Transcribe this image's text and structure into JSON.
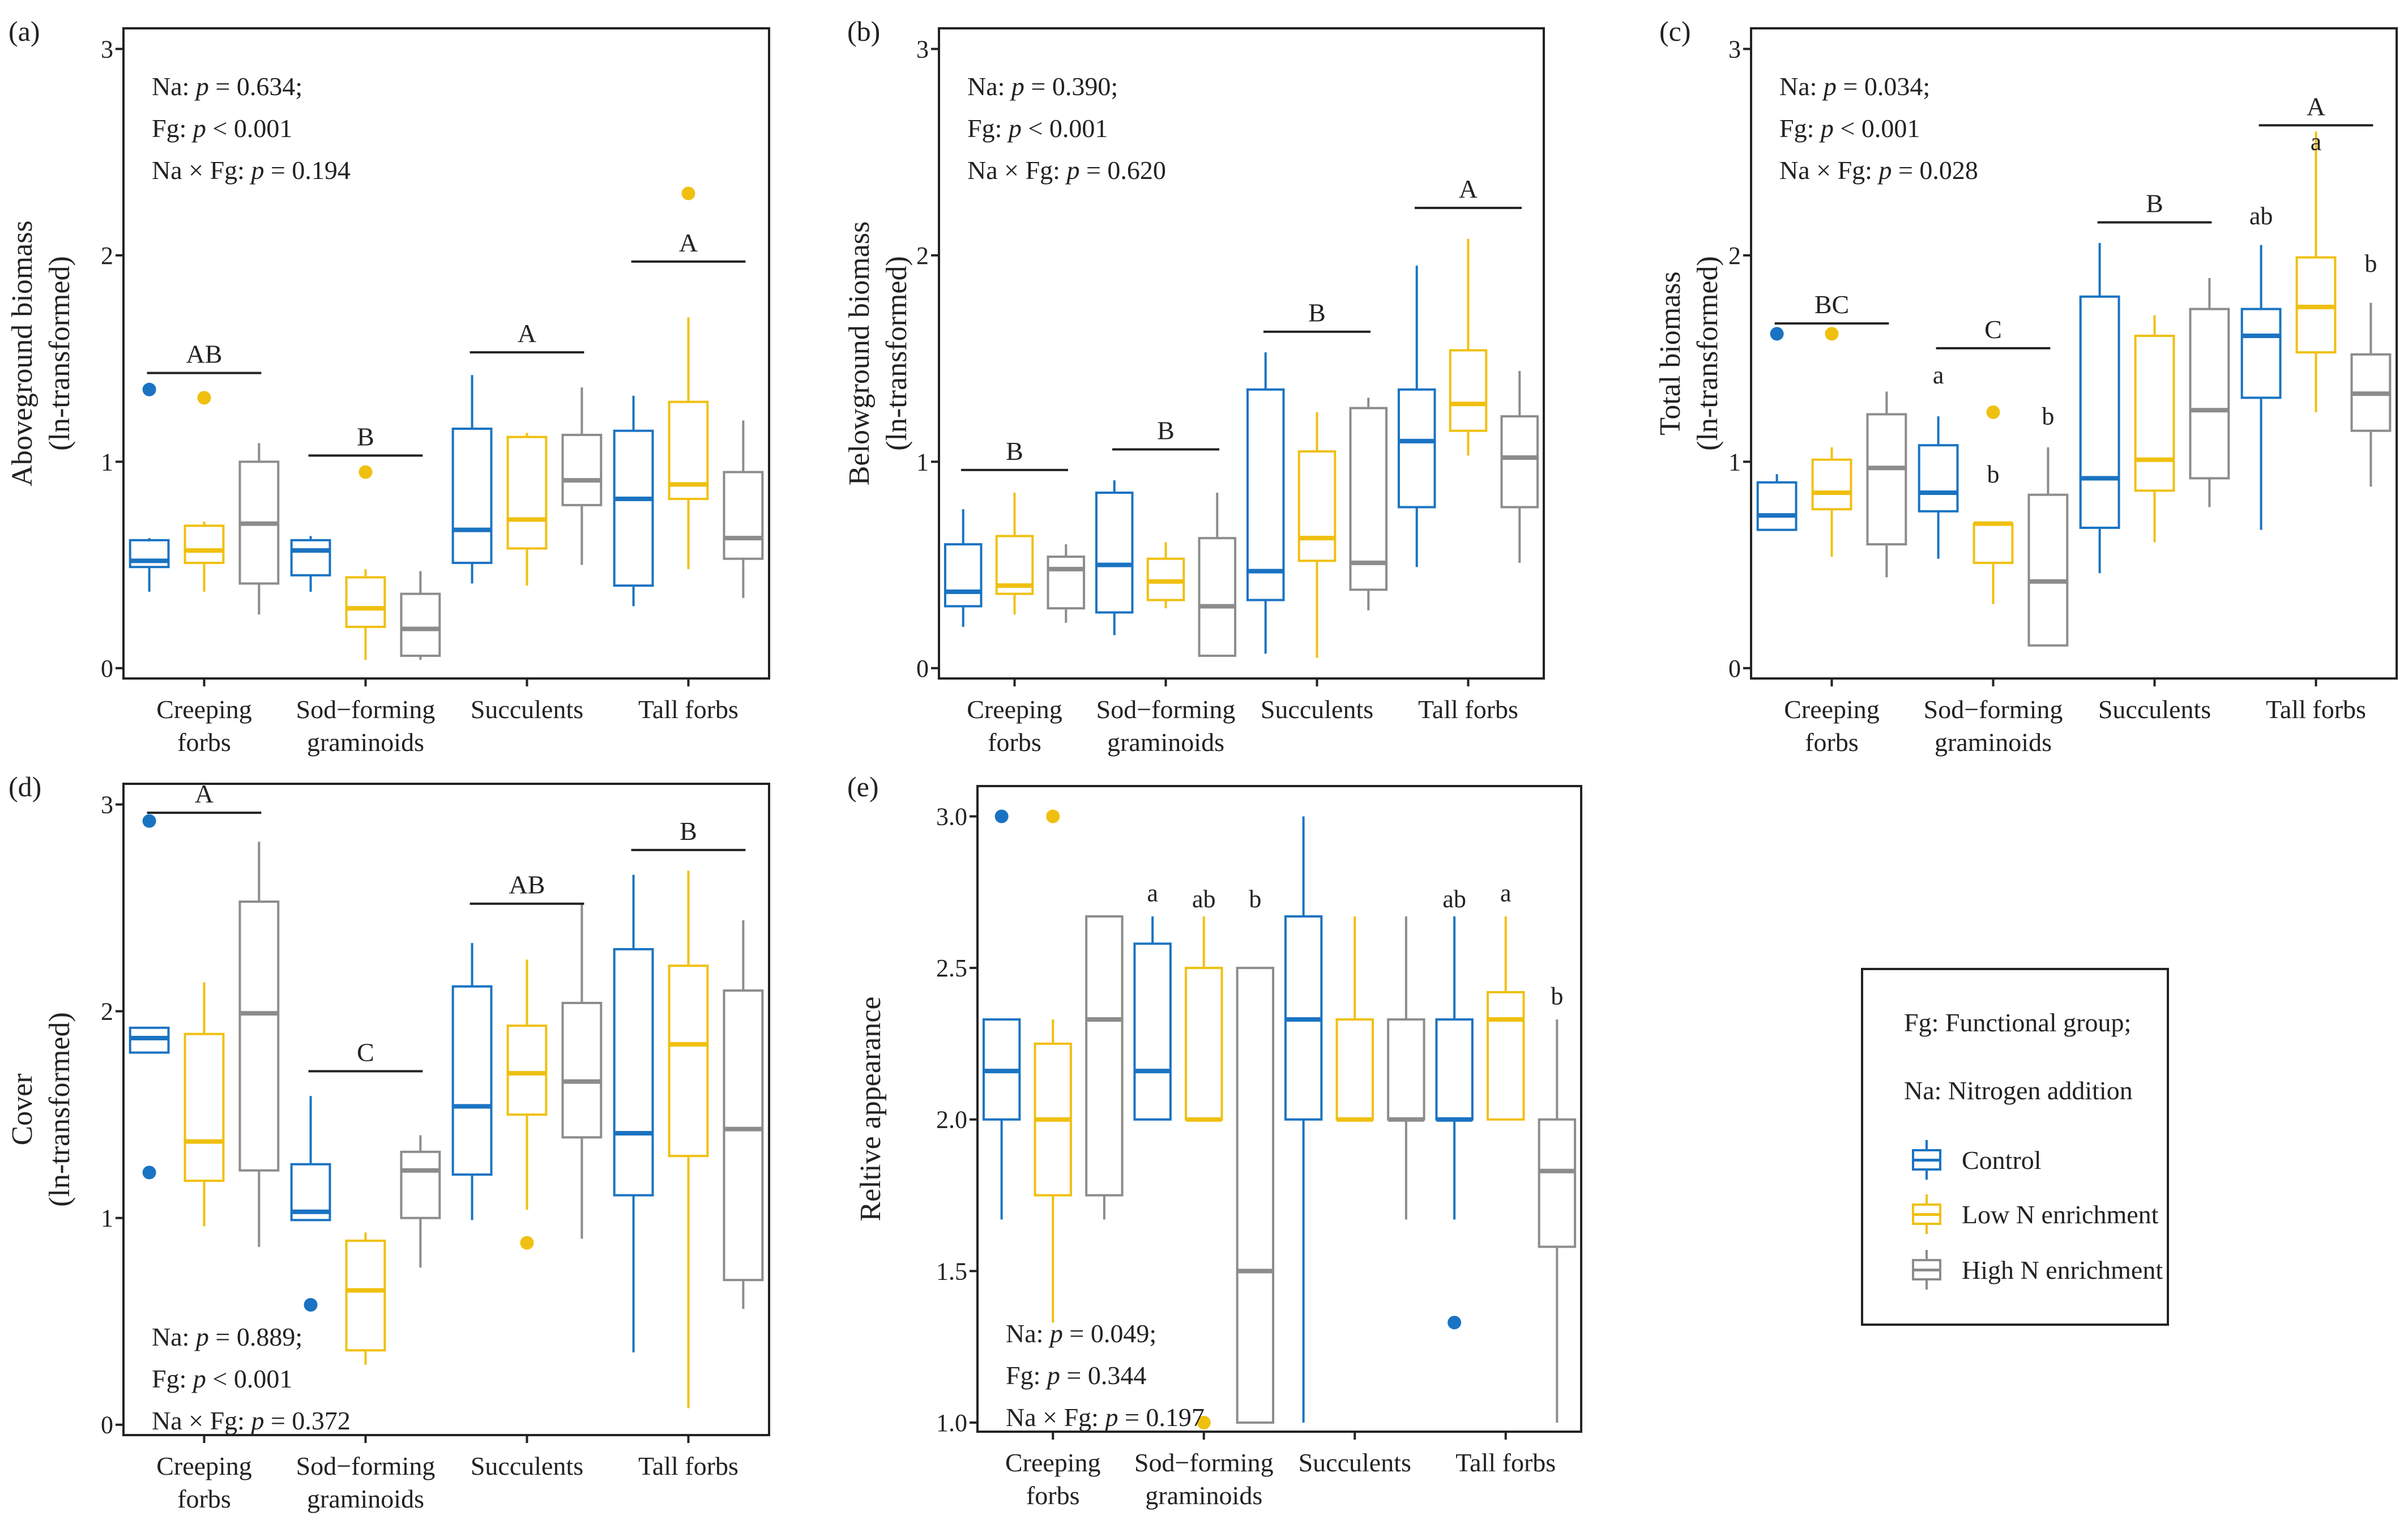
{
  "chart_data": {
    "type": "box",
    "groups": [
      "Control",
      "Low N enrichment",
      "High N enrichment"
    ],
    "colors": {
      "Control": "#1a73c2",
      "Low N enrichment": "#f0c010",
      "High N enrichment": "#8c8c8c"
    },
    "panels": [
      {
        "tag": "(a)",
        "ylabel": [
          "Aboveground biomass",
          "(ln-transformed)"
        ],
        "ylim": [
          -0.05,
          3.1
        ],
        "yticks": [
          "0",
          "1",
          "2",
          "3"
        ],
        "ytick_values": [
          0,
          1,
          2,
          3
        ],
        "categories": [
          [
            "Creeping",
            "forbs"
          ],
          [
            "Sod−forming",
            "graminoids"
          ],
          [
            "Succulents"
          ],
          [
            "Tall forbs"
          ]
        ],
        "stats": [
          "Na: p = 0.634;",
          "Fg: p < 0.001",
          "Na × Fg: p = 0.194"
        ],
        "stats_position": "top-left",
        "category_letters": [
          {
            "text": "AB",
            "y": 1.43
          },
          {
            "text": "B",
            "y": 1.03
          },
          {
            "text": "A",
            "y": 1.53
          },
          {
            "text": "A",
            "y": 1.97
          }
        ],
        "boxes": [
          [
            {
              "lo": 0.37,
              "q1": 0.49,
              "med": 0.52,
              "q3": 0.62,
              "hi": 0.63,
              "out": [
                1.35
              ]
            },
            {
              "lo": 0.37,
              "q1": 0.51,
              "med": 0.57,
              "q3": 0.69,
              "hi": 0.71,
              "out": [
                1.31
              ]
            },
            {
              "lo": 0.26,
              "q1": 0.41,
              "med": 0.7,
              "q3": 1.0,
              "hi": 1.09,
              "out": []
            }
          ],
          [
            {
              "lo": 0.37,
              "q1": 0.45,
              "med": 0.57,
              "q3": 0.62,
              "hi": 0.64,
              "out": []
            },
            {
              "lo": 0.04,
              "q1": 0.2,
              "med": 0.29,
              "q3": 0.44,
              "hi": 0.48,
              "out": [
                0.95
              ]
            },
            {
              "lo": 0.04,
              "q1": 0.06,
              "med": 0.19,
              "q3": 0.36,
              "hi": 0.47,
              "out": []
            }
          ],
          [
            {
              "lo": 0.41,
              "q1": 0.51,
              "med": 0.67,
              "q3": 1.16,
              "hi": 1.42,
              "out": []
            },
            {
              "lo": 0.4,
              "q1": 0.58,
              "med": 0.72,
              "q3": 1.12,
              "hi": 1.14,
              "out": []
            },
            {
              "lo": 0.5,
              "q1": 0.79,
              "med": 0.91,
              "q3": 1.13,
              "hi": 1.36,
              "out": []
            }
          ],
          [
            {
              "lo": 0.3,
              "q1": 0.4,
              "med": 0.82,
              "q3": 1.15,
              "hi": 1.32,
              "out": []
            },
            {
              "lo": 0.48,
              "q1": 0.82,
              "med": 0.89,
              "q3": 1.29,
              "hi": 1.7,
              "out": [
                2.3
              ]
            },
            {
              "lo": 0.34,
              "q1": 0.53,
              "med": 0.63,
              "q3": 0.95,
              "hi": 1.2,
              "out": []
            }
          ]
        ],
        "box_letters": []
      },
      {
        "tag": "(b)",
        "ylabel": [
          "Belowground biomass",
          "(ln-transformed)"
        ],
        "ylim": [
          -0.05,
          3.1
        ],
        "yticks": [
          "0",
          "1",
          "2",
          "3"
        ],
        "ytick_values": [
          0,
          1,
          2,
          3
        ],
        "categories": [
          [
            "Creeping",
            "forbs"
          ],
          [
            "Sod−forming",
            "graminoids"
          ],
          [
            "Succulents"
          ],
          [
            "Tall forbs"
          ]
        ],
        "stats": [
          "Na: p = 0.390;",
          "Fg: p < 0.001",
          "Na × Fg: p = 0.620"
        ],
        "stats_position": "top-left",
        "category_letters": [
          {
            "text": "B",
            "y": 0.96
          },
          {
            "text": "B",
            "y": 1.06
          },
          {
            "text": "B",
            "y": 1.63
          },
          {
            "text": "A",
            "y": 2.23
          }
        ],
        "boxes": [
          [
            {
              "lo": 0.2,
              "q1": 0.3,
              "med": 0.37,
              "q3": 0.6,
              "hi": 0.77,
              "out": []
            },
            {
              "lo": 0.26,
              "q1": 0.36,
              "med": 0.4,
              "q3": 0.64,
              "hi": 0.85,
              "out": []
            },
            {
              "lo": 0.22,
              "q1": 0.29,
              "med": 0.48,
              "q3": 0.54,
              "hi": 0.6,
              "out": []
            }
          ],
          [
            {
              "lo": 0.16,
              "q1": 0.27,
              "med": 0.5,
              "q3": 0.85,
              "hi": 0.91,
              "out": []
            },
            {
              "lo": 0.29,
              "q1": 0.33,
              "med": 0.42,
              "q3": 0.53,
              "hi": 0.61,
              "out": []
            },
            {
              "lo": 0.06,
              "q1": 0.06,
              "med": 0.3,
              "q3": 0.63,
              "hi": 0.85,
              "out": []
            }
          ],
          [
            {
              "lo": 0.07,
              "q1": 0.33,
              "med": 0.47,
              "q3": 1.35,
              "hi": 1.53,
              "out": []
            },
            {
              "lo": 0.05,
              "q1": 0.52,
              "med": 0.63,
              "q3": 1.05,
              "hi": 1.24,
              "out": []
            },
            {
              "lo": 0.28,
              "q1": 0.38,
              "med": 0.51,
              "q3": 1.26,
              "hi": 1.31,
              "out": []
            }
          ],
          [
            {
              "lo": 0.49,
              "q1": 0.78,
              "med": 1.1,
              "q3": 1.35,
              "hi": 1.95,
              "out": []
            },
            {
              "lo": 1.03,
              "q1": 1.15,
              "med": 1.28,
              "q3": 1.54,
              "hi": 2.08,
              "out": []
            },
            {
              "lo": 0.51,
              "q1": 0.78,
              "med": 1.02,
              "q3": 1.22,
              "hi": 1.44,
              "out": []
            }
          ]
        ],
        "box_letters": []
      },
      {
        "tag": "(c)",
        "ylabel": [
          "Total biomass",
          "(ln-transformed)"
        ],
        "ylim": [
          -0.05,
          3.1
        ],
        "yticks": [
          "0",
          "1",
          "2",
          "3"
        ],
        "ytick_values": [
          0,
          1,
          2,
          3
        ],
        "categories": [
          [
            "Creeping",
            "forbs"
          ],
          [
            "Sod−forming",
            "graminoids"
          ],
          [
            "Succulents"
          ],
          [
            "Tall forbs"
          ]
        ],
        "stats": [
          "Na: p = 0.034;",
          "Fg: p < 0.001",
          "Na × Fg: p = 0.028"
        ],
        "stats_position": "top-left",
        "category_letters": [
          {
            "text": "BC",
            "y": 1.67
          },
          {
            "text": "C",
            "y": 1.55
          },
          {
            "text": "B",
            "y": 2.16
          },
          {
            "text": "A",
            "y": 2.63
          }
        ],
        "boxes": [
          [
            {
              "lo": 0.67,
              "q1": 0.67,
              "med": 0.74,
              "q3": 0.9,
              "hi": 0.94,
              "out": [
                1.62
              ]
            },
            {
              "lo": 0.54,
              "q1": 0.77,
              "med": 0.85,
              "q3": 1.01,
              "hi": 1.07,
              "out": [
                1.62
              ]
            },
            {
              "lo": 0.44,
              "q1": 0.6,
              "med": 0.97,
              "q3": 1.23,
              "hi": 1.34,
              "out": []
            }
          ],
          [
            {
              "lo": 0.53,
              "q1": 0.76,
              "med": 0.85,
              "q3": 1.08,
              "hi": 1.22,
              "out": []
            },
            {
              "lo": 0.31,
              "q1": 0.51,
              "med": 0.7,
              "q3": 0.7,
              "hi": 0.7,
              "out": [
                1.24
              ]
            },
            {
              "lo": 0.11,
              "q1": 0.11,
              "med": 0.42,
              "q3": 0.84,
              "hi": 1.07,
              "out": []
            }
          ],
          [
            {
              "lo": 0.46,
              "q1": 0.68,
              "med": 0.92,
              "q3": 1.8,
              "hi": 2.06,
              "out": []
            },
            {
              "lo": 0.61,
              "q1": 0.86,
              "med": 1.01,
              "q3": 1.61,
              "hi": 1.71,
              "out": []
            },
            {
              "lo": 0.78,
              "q1": 0.92,
              "med": 1.25,
              "q3": 1.74,
              "hi": 1.89,
              "out": []
            }
          ],
          [
            {
              "lo": 0.67,
              "q1": 1.31,
              "med": 1.61,
              "q3": 1.74,
              "hi": 2.05,
              "out": []
            },
            {
              "lo": 1.24,
              "q1": 1.53,
              "med": 1.75,
              "q3": 1.99,
              "hi": 2.6,
              "out": []
            },
            {
              "lo": 0.88,
              "q1": 1.15,
              "med": 1.33,
              "q3": 1.52,
              "hi": 1.77,
              "out": []
            }
          ]
        ],
        "box_letters": [
          {
            "cat": 1,
            "grp": 0,
            "text": "a",
            "y": 1.38
          },
          {
            "cat": 1,
            "grp": 1,
            "text": "b",
            "y": 0.9
          },
          {
            "cat": 1,
            "grp": 2,
            "text": "b",
            "y": 1.18
          },
          {
            "cat": 3,
            "grp": 0,
            "text": "ab",
            "y": 2.15
          },
          {
            "cat": 3,
            "grp": 1,
            "text": "a",
            "y": 2.51
          },
          {
            "cat": 3,
            "grp": 2,
            "text": "b",
            "y": 1.92
          }
        ]
      },
      {
        "tag": "(d)",
        "ylabel": [
          "Cover",
          "(ln-transformed)"
        ],
        "ylim": [
          -0.05,
          3.1
        ],
        "yticks": [
          "0",
          "1",
          "2",
          "3"
        ],
        "ytick_values": [
          0,
          1,
          2,
          3
        ],
        "categories": [
          [
            "Creeping",
            "forbs"
          ],
          [
            "Sod−forming",
            "graminoids"
          ],
          [
            "Succulents"
          ],
          [
            "Tall forbs"
          ]
        ],
        "stats": [
          "Na: p = 0.889;",
          "Fg: p < 0.001",
          "Na × Fg: p = 0.372"
        ],
        "stats_position": "bottom-left",
        "category_letters": [
          {
            "text": "A",
            "y": 2.96
          },
          {
            "text": "C",
            "y": 1.71
          },
          {
            "text": "AB",
            "y": 2.52
          },
          {
            "text": "B",
            "y": 2.78
          }
        ],
        "boxes": [
          [
            {
              "lo": 1.8,
              "q1": 1.8,
              "med": 1.87,
              "q3": 1.92,
              "hi": 1.92,
              "out": [
                2.92,
                1.22
              ]
            },
            {
              "lo": 0.96,
              "q1": 1.18,
              "med": 1.37,
              "q3": 1.89,
              "hi": 2.14,
              "out": []
            },
            {
              "lo": 0.86,
              "q1": 1.23,
              "med": 1.99,
              "q3": 2.53,
              "hi": 2.82,
              "out": []
            }
          ],
          [
            {
              "lo": 0.99,
              "q1": 0.99,
              "med": 1.03,
              "q3": 1.26,
              "hi": 1.59,
              "out": [
                0.58
              ]
            },
            {
              "lo": 0.29,
              "q1": 0.36,
              "med": 0.65,
              "q3": 0.89,
              "hi": 0.93,
              "out": []
            },
            {
              "lo": 0.76,
              "q1": 1.0,
              "med": 1.23,
              "q3": 1.32,
              "hi": 1.4,
              "out": []
            }
          ],
          [
            {
              "lo": 0.99,
              "q1": 1.21,
              "med": 1.54,
              "q3": 2.12,
              "hi": 2.33,
              "out": []
            },
            {
              "lo": 1.04,
              "q1": 1.5,
              "med": 1.7,
              "q3": 1.93,
              "hi": 2.25,
              "out": [
                0.88
              ]
            },
            {
              "lo": 0.9,
              "q1": 1.39,
              "med": 1.66,
              "q3": 2.04,
              "hi": 2.52,
              "out": []
            }
          ],
          [
            {
              "lo": 0.35,
              "q1": 1.11,
              "med": 1.41,
              "q3": 2.3,
              "hi": 2.66,
              "out": []
            },
            {
              "lo": 0.08,
              "q1": 1.3,
              "med": 1.84,
              "q3": 2.22,
              "hi": 2.68,
              "out": []
            },
            {
              "lo": 0.56,
              "q1": 0.7,
              "med": 1.43,
              "q3": 2.1,
              "hi": 2.44,
              "out": []
            }
          ]
        ],
        "box_letters": []
      },
      {
        "tag": "(e)",
        "ylabel": [
          "Reltive appearance"
        ],
        "ylim": [
          0.97,
          3.1
        ],
        "yticks": [
          "1.0",
          "1.5",
          "2.0",
          "2.5",
          "3.0"
        ],
        "ytick_values": [
          1.0,
          1.5,
          2.0,
          2.5,
          3.0
        ],
        "categories": [
          [
            "Creeping",
            "forbs"
          ],
          [
            "Sod−forming",
            "graminoids"
          ],
          [
            "Succulents"
          ],
          [
            "Tall forbs"
          ]
        ],
        "stats": [
          "Na: p = 0.049;",
          "Fg: p = 0.344",
          "Na × Fg: p = 0.197"
        ],
        "stats_position": "bottom-left",
        "category_letters": [],
        "boxes": [
          [
            {
              "lo": 1.67,
              "q1": 2.0,
              "med": 2.16,
              "q3": 2.33,
              "hi": 2.33,
              "out": [
                3.0
              ]
            },
            {
              "lo": 1.33,
              "q1": 1.75,
              "med": 2.0,
              "q3": 2.25,
              "hi": 2.33,
              "out": [
                3.0
              ]
            },
            {
              "lo": 1.67,
              "q1": 1.75,
              "med": 2.33,
              "q3": 2.67,
              "hi": 2.67,
              "out": []
            }
          ],
          [
            {
              "lo": 2.0,
              "q1": 2.0,
              "med": 2.16,
              "q3": 2.58,
              "hi": 2.67,
              "out": []
            },
            {
              "lo": 2.0,
              "q1": 2.0,
              "med": 2.0,
              "q3": 2.5,
              "hi": 2.67,
              "out": [
                1.0
              ]
            },
            {
              "lo": 1.0,
              "q1": 1.0,
              "med": 1.5,
              "q3": 2.5,
              "hi": 2.5,
              "out": []
            }
          ],
          [
            {
              "lo": 1.0,
              "q1": 2.0,
              "med": 2.33,
              "q3": 2.67,
              "hi": 3.0,
              "out": []
            },
            {
              "lo": 2.0,
              "q1": 2.0,
              "med": 2.0,
              "q3": 2.33,
              "hi": 2.67,
              "out": []
            },
            {
              "lo": 1.67,
              "q1": 2.0,
              "med": 2.0,
              "q3": 2.33,
              "hi": 2.67,
              "out": []
            }
          ],
          [
            {
              "lo": 1.67,
              "q1": 2.0,
              "med": 2.0,
              "q3": 2.33,
              "hi": 2.67,
              "out": [
                1.33
              ]
            },
            {
              "lo": 2.0,
              "q1": 2.0,
              "med": 2.33,
              "q3": 2.42,
              "hi": 2.67,
              "out": []
            },
            {
              "lo": 1.0,
              "q1": 1.58,
              "med": 1.83,
              "q3": 2.0,
              "hi": 2.33,
              "out": []
            }
          ]
        ],
        "box_letters": [
          {
            "cat": 1,
            "grp": 0,
            "text": "a",
            "y": 2.72
          },
          {
            "cat": 1,
            "grp": 1,
            "text": "ab",
            "y": 2.7
          },
          {
            "cat": 1,
            "grp": 2,
            "text": "b",
            "y": 2.7
          },
          {
            "cat": 3,
            "grp": 0,
            "text": "ab",
            "y": 2.7
          },
          {
            "cat": 3,
            "grp": 1,
            "text": "a",
            "y": 2.72
          },
          {
            "cat": 3,
            "grp": 2,
            "text": "b",
            "y": 2.38
          }
        ]
      }
    ]
  },
  "legend": {
    "notes": [
      "Fg: Functional group;",
      "Na: Nitrogen addition"
    ],
    "entries": [
      "Control",
      "Low N enrichment",
      "High N enrichment"
    ],
    "colors": [
      "#1a73c2",
      "#f0c010",
      "#8c8c8c"
    ],
    "icon": "boxplot-key-icon"
  }
}
